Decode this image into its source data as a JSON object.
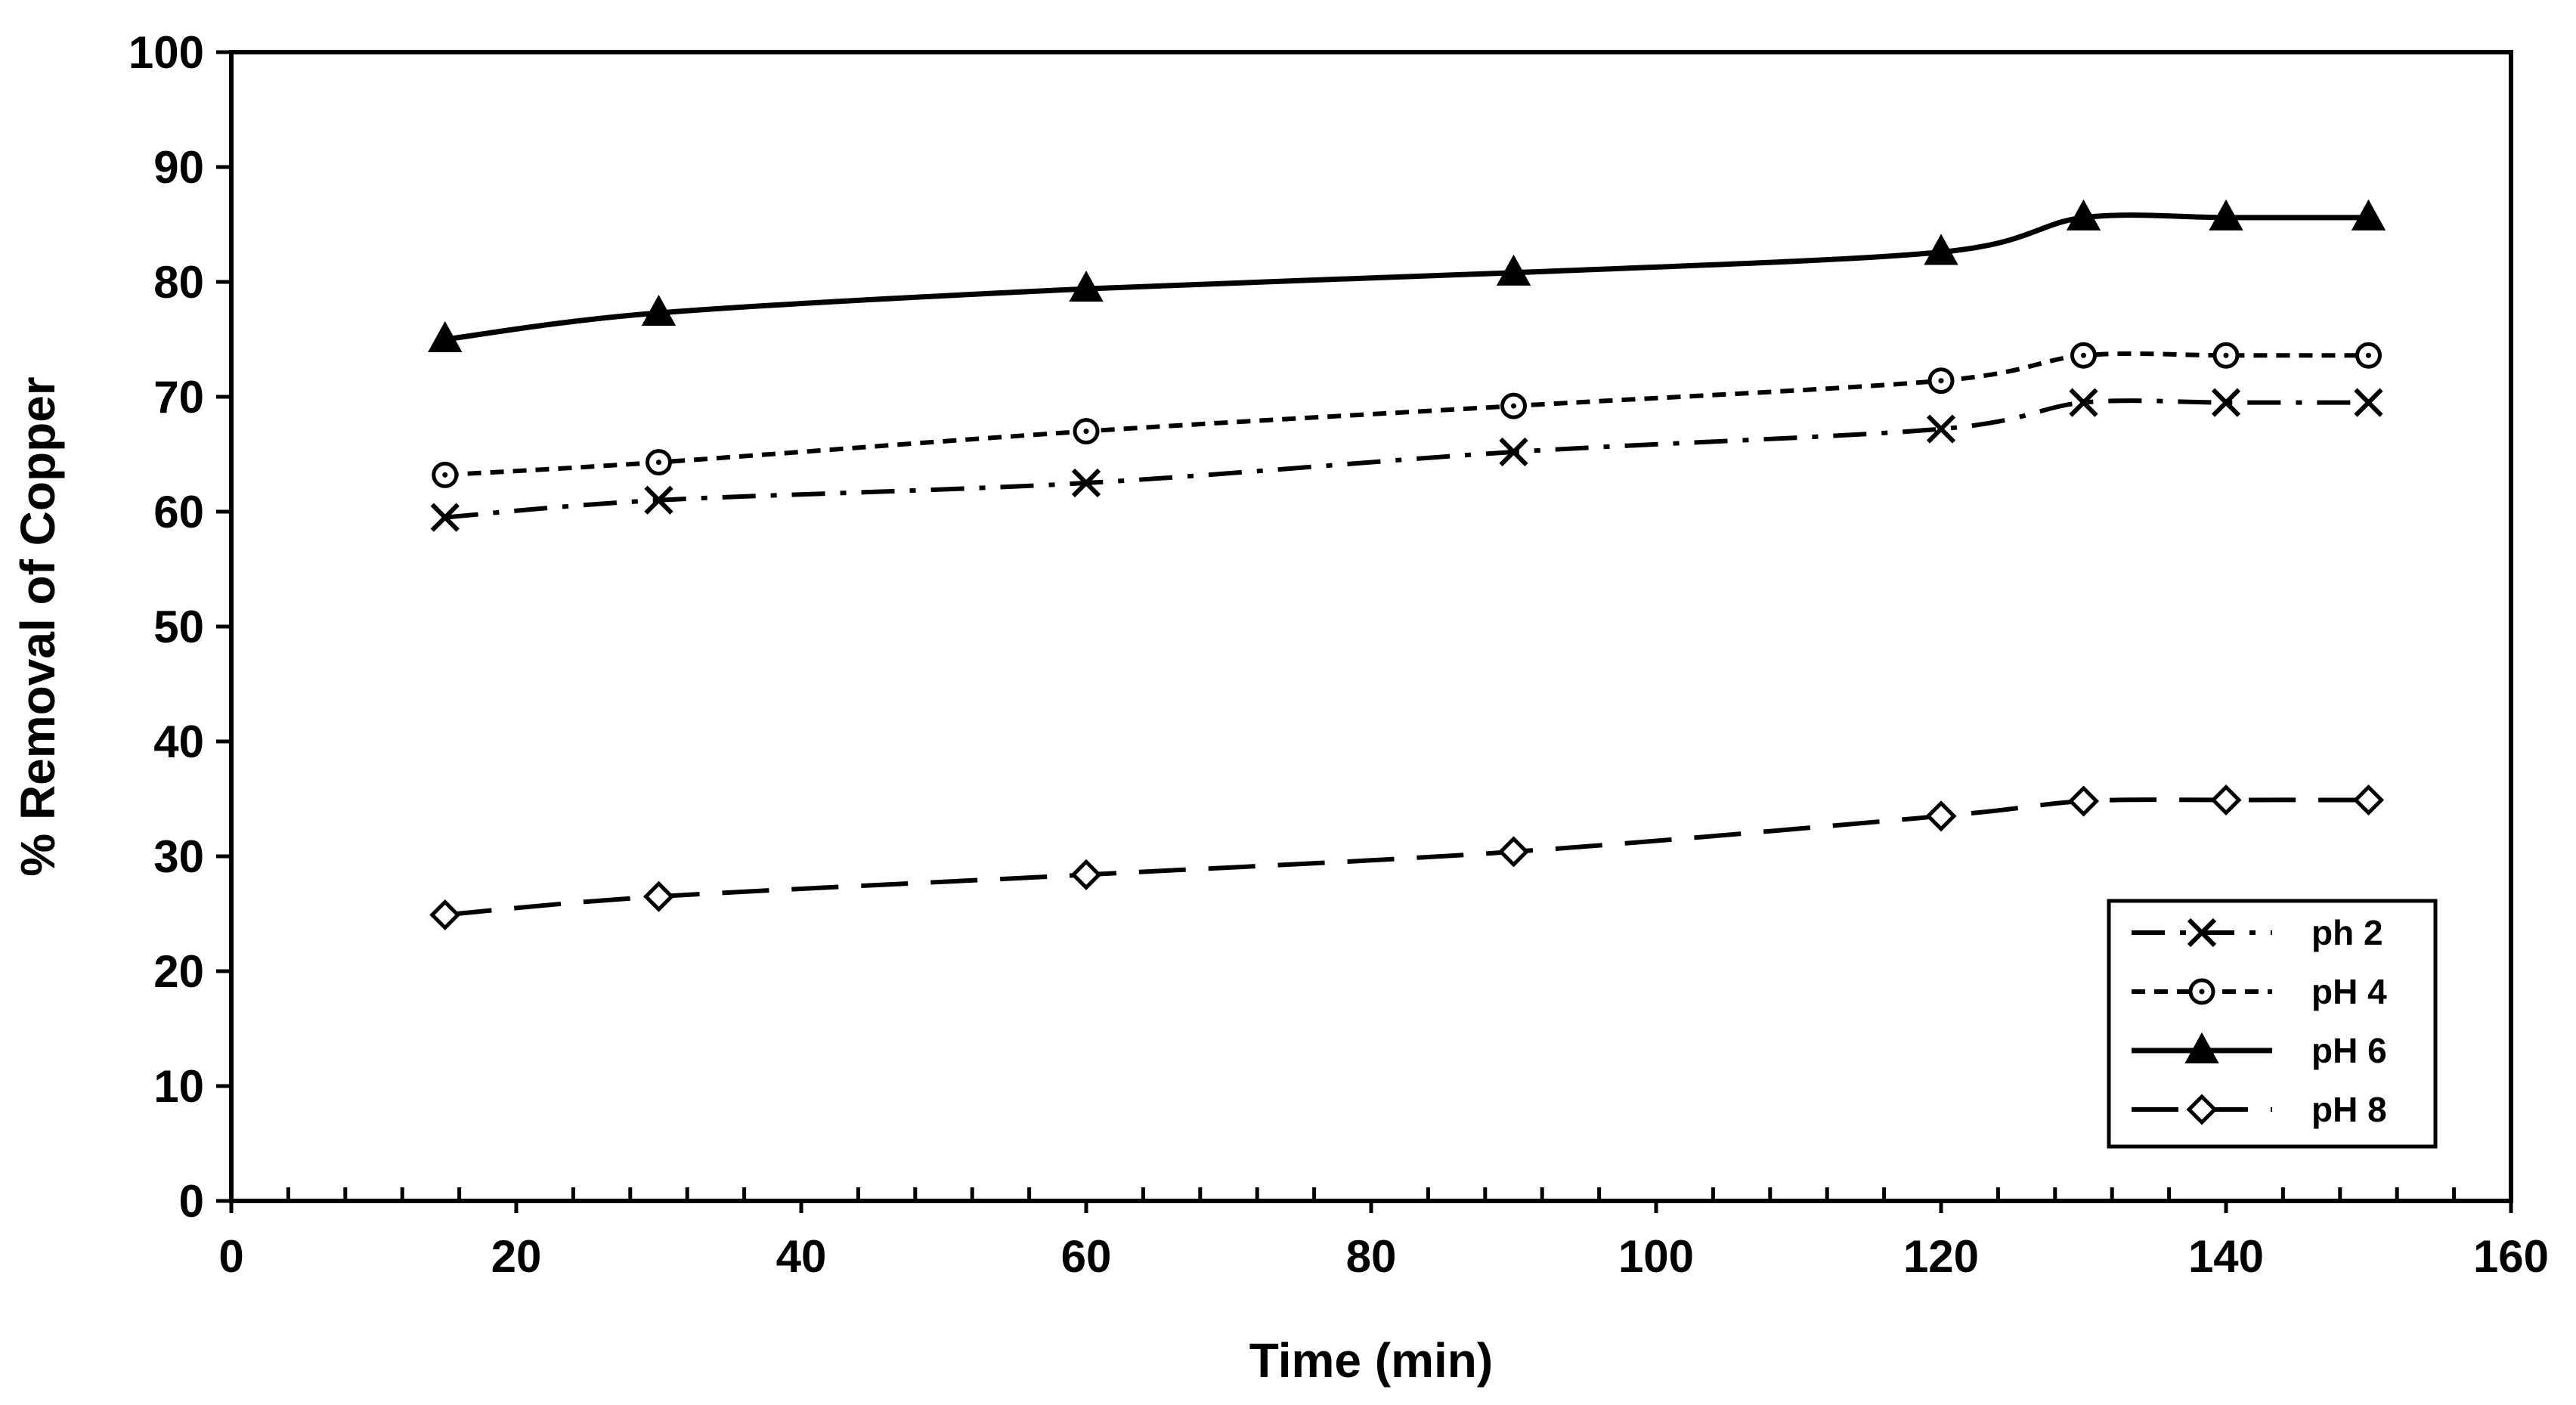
{
  "chart_data": {
    "type": "line",
    "title": "",
    "xlabel": "Time (min)",
    "ylabel": "% Removal of Copper",
    "xlim": [
      0,
      160
    ],
    "ylim": [
      0,
      100
    ],
    "x_major_ticks": [
      0,
      20,
      40,
      60,
      80,
      100,
      120,
      140,
      160
    ],
    "x_minor_step": 4,
    "y_major_ticks": [
      0,
      10,
      20,
      30,
      40,
      50,
      60,
      70,
      80,
      90,
      100
    ],
    "grid": false,
    "legend_position": "bottom-right",
    "x": [
      15,
      30,
      60,
      90,
      120,
      130,
      140,
      150
    ],
    "series": [
      {
        "name": "ph 2",
        "marker": "x",
        "line_style": "dash-dot",
        "values": [
          59.5,
          61,
          62.5,
          65.2,
          67.2,
          69.5,
          69.5,
          69.5
        ]
      },
      {
        "name": "pH 4",
        "marker": "circle",
        "line_style": "short-dash",
        "values": [
          63.2,
          64.3,
          67,
          69.2,
          71.4,
          73.6,
          73.6,
          73.6
        ]
      },
      {
        "name": "pH 6",
        "marker": "triangle",
        "line_style": "solid",
        "values": [
          75,
          77.3,
          79.4,
          80.8,
          82.6,
          85.6,
          85.6,
          85.6
        ]
      },
      {
        "name": "pH 8",
        "marker": "diamond",
        "line_style": "long-dash",
        "values": [
          24.9,
          26.5,
          28.4,
          30.4,
          33.5,
          34.8,
          34.9,
          34.9
        ]
      }
    ]
  }
}
